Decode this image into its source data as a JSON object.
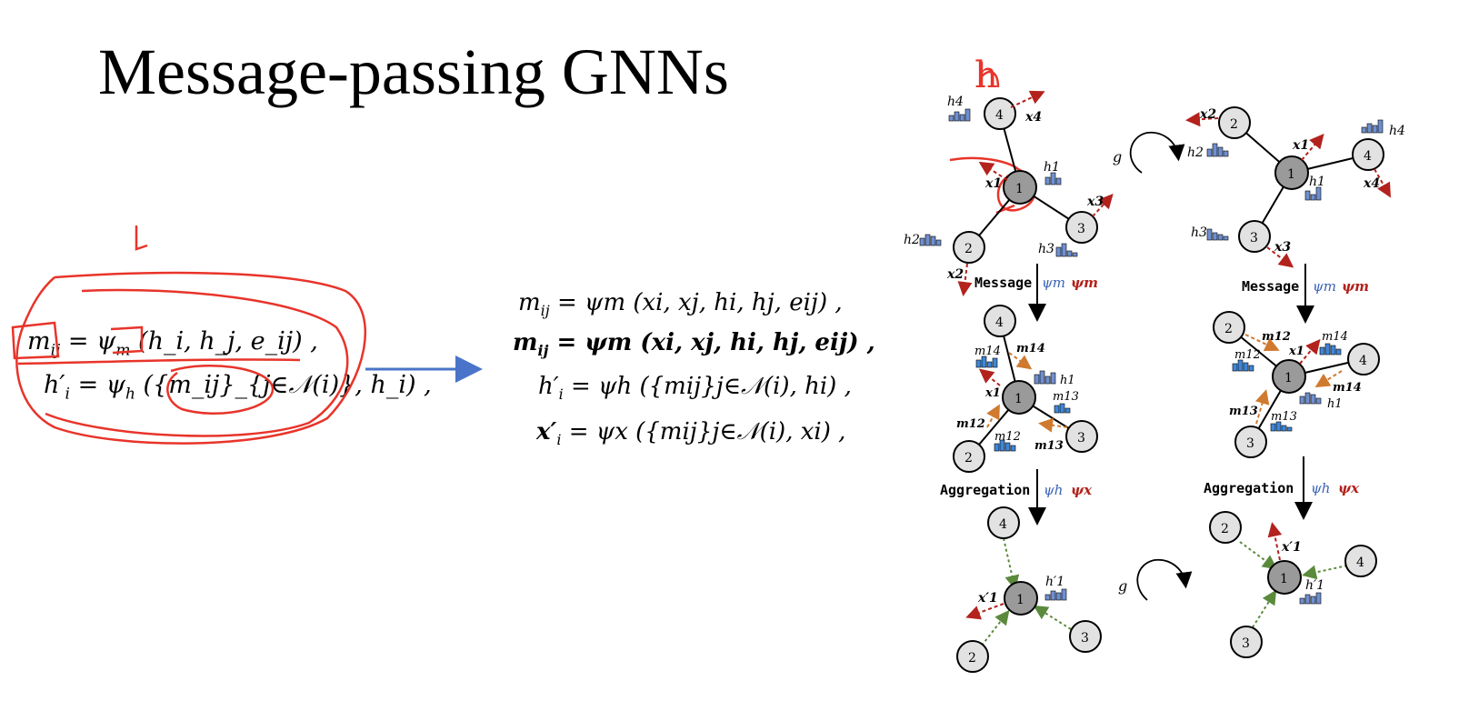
{
  "slide": {
    "title": "Message-passing GNNs"
  },
  "left_equations": {
    "line1": "m_ij = ψ_m (h_i, h_j, e_ij) ,",
    "line2": "h′_i = ψ_h ({m_ij}_{j∈𝒩(i)}, h_i) ,",
    "line1_parts": {
      "lhs": "m",
      "sub": "ij",
      "rhs": "= ψ",
      "rsub": "m",
      "args": "(h_i, h_j, e_ij) ,"
    },
    "line2_parts": {
      "lhs": "h′",
      "sub": "i",
      "rhs": "= ψ",
      "rsub": "h",
      "args": "({m_ij}_{j∈𝒩(i)}, h_i) ,"
    }
  },
  "middle_equations": [
    {
      "lhs": "m",
      "sub": "ij",
      "rest": "= ψm (xi, xj, hi, hj, eij) ,"
    },
    {
      "lhs": "m",
      "sub": "ij",
      "rest": "= ψm (xi, xj, hi, hj, eij) ,"
    },
    {
      "lhs": "h′",
      "sub": "i",
      "rest": "= ψh ({mij}j∈𝒩(i), hi) ,"
    },
    {
      "lhs": "x′",
      "sub": "i",
      "rest": "= ψx ({mij}j∈𝒩(i), xi) ,"
    }
  ],
  "annotations": {
    "letter_h": "h",
    "letter_l": "L"
  },
  "diagram": {
    "rotation_label": "g",
    "stage_message": "Message",
    "stage_aggregation": "Aggregation",
    "psi_m": "ψm",
    "psi_h": "ψh",
    "psi_x": "ψx",
    "node_labels": [
      "1",
      "2",
      "3",
      "4"
    ],
    "feature_labels": {
      "h1": "h1",
      "h2": "h2",
      "h3": "h3",
      "h4": "h4",
      "h1p": "h′1"
    },
    "coord_labels": {
      "x1": "x1",
      "x2": "x2",
      "x3": "x3",
      "x4": "x4",
      "x1p": "x′1"
    },
    "message_labels": {
      "m12": "m12",
      "m13": "m13",
      "m14": "m14"
    }
  },
  "colors": {
    "pen_red": "#e8342a",
    "arrow_blue": "#4a74c9",
    "coord_arrow": "#b3221c",
    "msg_arrow": "#cf7a2e",
    "agg_arrow": "#5b8a3c",
    "node_fill": "#e2e2e2",
    "center_fill": "#9a9a9a",
    "hist_fill": "#6f8fcf",
    "hist_msg_fill": "#3f86d8",
    "psi_blue": "#3b63b5",
    "psi_red": "#b3221c"
  }
}
